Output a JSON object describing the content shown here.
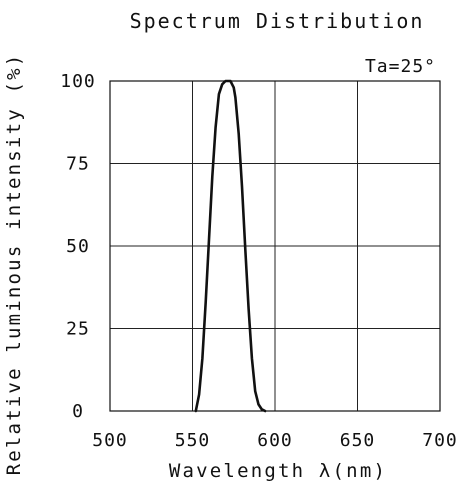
{
  "chart_data": {
    "type": "line",
    "title": "Spectrum Distribution",
    "annotation": "Ta=25°",
    "xlabel": "Wavelength λ(nm)",
    "ylabel": "Relative luminous intensity (%)",
    "xlim": [
      500,
      700
    ],
    "ylim": [
      0,
      100
    ],
    "x_ticks": [
      500,
      550,
      600,
      650,
      700
    ],
    "y_ticks": [
      0,
      25,
      50,
      75,
      100
    ],
    "grid": true,
    "series": [
      {
        "x": [
          552,
          554,
          556,
          558,
          560,
          562,
          564,
          566,
          568,
          570,
          572,
          573,
          574,
          575,
          576,
          578,
          580,
          582,
          584,
          586,
          588,
          590,
          592,
          594
        ],
        "values": [
          0,
          5,
          16,
          33,
          52,
          71,
          86,
          96,
          99,
          100,
          100,
          100,
          99,
          98,
          95,
          84,
          68,
          49,
          31,
          16,
          6,
          2,
          0.5,
          0
        ]
      }
    ],
    "colors": {
      "line": "#111111",
      "grid": "#222222",
      "frame": "#111111",
      "background": "#ffffff"
    }
  }
}
